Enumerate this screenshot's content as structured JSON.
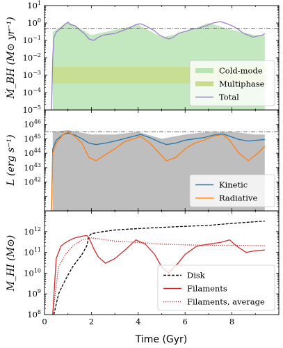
{
  "chart_data": [
    {
      "type": "line",
      "panel": "top",
      "ylabel": "Ṁ_BH (M⊙ yr⁻¹)",
      "yscale": "log",
      "ylim": [
        1e-05,
        10
      ],
      "xlim": [
        0,
        10
      ],
      "y_ticks": [
        {
          "value": 10,
          "base": "10",
          "exp": "1"
        },
        {
          "value": 1,
          "base": "10",
          "exp": "0"
        },
        {
          "value": 0.1,
          "base": "10",
          "exp": "-1"
        },
        {
          "value": 0.01,
          "base": "10",
          "exp": "-2"
        },
        {
          "value": 0.001,
          "base": "10",
          "exp": "-3"
        },
        {
          "value": 0.0001,
          "base": "10",
          "exp": "-4"
        },
        {
          "value": 1e-05,
          "base": "10",
          "exp": "-5"
        }
      ],
      "reference_line": 0.5,
      "legend": {
        "placement": "lower right",
        "entries": [
          "Cold-mode",
          "Multiphase",
          "Total"
        ]
      },
      "series": [
        {
          "name": "Cold-mode",
          "color": "#b9e3b3",
          "style": "fill",
          "x": [
            0.35,
            1,
            2,
            3,
            4,
            5,
            6,
            7,
            8,
            9,
            9.4
          ],
          "y": [
            0.3,
            1.2,
            0.2,
            0.4,
            0.8,
            0.15,
            0.3,
            1.0,
            0.4,
            0.2,
            0.2
          ]
        },
        {
          "name": "Multiphase",
          "color": "#c8dc8c",
          "style": "band",
          "x": [
            0.35,
            2,
            4,
            6,
            8,
            9.4
          ],
          "y": [
            0.001,
            0.001,
            0.001,
            0.001,
            0.001,
            0.001
          ]
        },
        {
          "name": "Total",
          "color": "#9b7fc7",
          "style": "line",
          "x": [
            0.3,
            0.35,
            0.4,
            0.5,
            0.7,
            0.9,
            1.0,
            1.1,
            1.3,
            1.5,
            1.7,
            1.9,
            2.1,
            2.3,
            2.5,
            2.7,
            3.0,
            3.3,
            3.6,
            3.9,
            4.1,
            4.3,
            4.5,
            4.7,
            4.9,
            5.1,
            5.3,
            5.5,
            5.7,
            5.9,
            6.1,
            6.3,
            6.6,
            6.9,
            7.2,
            7.5,
            7.7,
            7.9,
            8.1,
            8.3,
            8.5,
            8.7,
            8.9,
            9.1,
            9.3,
            9.4
          ],
          "y": [
            1e-05,
            0.01,
            0.15,
            0.3,
            0.5,
            0.9,
            1.1,
            0.8,
            0.7,
            0.4,
            0.25,
            0.12,
            0.1,
            0.15,
            0.2,
            0.22,
            0.25,
            0.35,
            0.5,
            0.8,
            0.9,
            0.7,
            0.5,
            0.35,
            0.2,
            0.15,
            0.12,
            0.15,
            0.25,
            0.3,
            0.35,
            0.45,
            0.5,
            0.7,
            1.0,
            1.2,
            1.0,
            0.8,
            0.6,
            0.4,
            0.25,
            0.2,
            0.15,
            0.18,
            0.2,
            0.25
          ]
        }
      ]
    },
    {
      "type": "line",
      "panel": "middle",
      "ylabel": "L (erg s⁻¹)",
      "yscale": "log",
      "ylim": [
        10000000000000000000000000000000000000000,
        1e+47
      ],
      "xlim": [
        0,
        10
      ],
      "y_ticks": [
        {
          "value": 1e+46,
          "base": "10",
          "exp": "46"
        },
        {
          "value": 1e+45,
          "base": "10",
          "exp": "45"
        },
        {
          "value": 1e+44,
          "base": "10",
          "exp": "44"
        },
        {
          "value": 1e+43,
          "base": "10",
          "exp": "43"
        },
        {
          "value": 1e+42,
          "base": "10",
          "exp": "42"
        }
      ],
      "reference_line": 3e+45,
      "legend": {
        "placement": "lower right",
        "entries": [
          "Kinetic",
          "Radiative"
        ]
      },
      "series": [
        {
          "name": "Kinetic",
          "color": "#1f77b4",
          "style": "line",
          "x": [
            0.3,
            0.35,
            0.5,
            0.8,
            1.0,
            1.3,
            1.6,
            1.9,
            2.2,
            2.6,
            3.0,
            3.4,
            3.8,
            4.1,
            4.5,
            4.9,
            5.2,
            5.6,
            6.0,
            6.4,
            6.8,
            7.2,
            7.6,
            7.9,
            8.3,
            8.7,
            9.1,
            9.4
          ],
          "y": [
            1e+40,
            2e+44,
            8e+44,
            2e+45,
            2.5e+45,
            1.8e+45,
            1e+45,
            5e+44,
            4e+44,
            5e+44,
            7e+44,
            1e+45,
            1.5e+45,
            2e+45,
            1.2e+45,
            6e+44,
            4e+44,
            5e+44,
            8e+44,
            1e+45,
            1.2e+45,
            1.8e+45,
            2.2e+45,
            1.5e+45,
            9e+44,
            7e+44,
            8e+44,
            9e+44
          ]
        },
        {
          "name": "Radiative",
          "color": "#ff7f0e",
          "style": "line",
          "x": [
            0.3,
            0.35,
            0.5,
            0.8,
            1.0,
            1.3,
            1.6,
            1.9,
            2.2,
            2.6,
            3.0,
            3.4,
            3.8,
            4.1,
            4.5,
            4.9,
            5.2,
            5.6,
            6.0,
            6.4,
            6.8,
            7.2,
            7.6,
            7.9,
            8.3,
            8.7,
            9.1,
            9.4
          ],
          "y": [
            1e+40,
            1e+44,
            5e+44,
            2e+45,
            3e+45,
            1.5e+45,
            5e+44,
            5e+43,
            3e+43,
            8e+43,
            2e+44,
            6e+44,
            1e+45,
            1.5e+45,
            5e+44,
            1e+44,
            3e+43,
            5e+43,
            2e+44,
            5e+44,
            8e+44,
            1.5e+45,
            2e+45,
            8e+44,
            1e+44,
            3e+43,
            1e+44,
            3e+44
          ]
        },
        {
          "name": "",
          "color": "#b3b3b3",
          "style": "fill",
          "x": [
            0.35,
            1,
            2,
            3,
            4,
            5,
            6,
            7,
            8,
            9,
            9.4
          ],
          "y": [
            3e+45,
            4e+45,
            2e+45,
            2e+45,
            3e+45,
            1e+45,
            2e+45,
            3e+45,
            3e+45,
            2e+45,
            2e+45
          ]
        }
      ]
    },
    {
      "type": "line",
      "panel": "bottom",
      "ylabel": "M_HI (M⊙)",
      "xlabel": "Time (Gyr)",
      "yscale": "log",
      "ylim": [
        100000000,
        10000000000000
      ],
      "xlim": [
        0,
        10
      ],
      "x_ticks": [
        "0",
        "2",
        "4",
        "6",
        "8"
      ],
      "y_ticks": [
        {
          "value": 1000000000000,
          "base": "10",
          "exp": "12"
        },
        {
          "value": 100000000000,
          "base": "10",
          "exp": "11"
        },
        {
          "value": 10000000000,
          "base": "10",
          "exp": "10"
        },
        {
          "value": 1000000000,
          "base": "10",
          "exp": "9"
        },
        {
          "value": 100000000,
          "base": "10",
          "exp": "8"
        }
      ],
      "legend": {
        "placement": "lower right",
        "entries": [
          "Disk",
          "Filaments",
          "Filaments, average"
        ]
      },
      "series": [
        {
          "name": "Disk",
          "color": "#000000",
          "style": "dashed",
          "x": [
            0.4,
            0.6,
            0.8,
            1.0,
            1.2,
            1.4,
            1.6,
            1.8,
            1.9,
            2.0,
            2.5,
            3.0,
            4.0,
            5.0,
            6.0,
            7.0,
            8.0,
            9.0,
            9.4
          ],
          "y": [
            100000000,
            1000000000,
            3000000000,
            8000000000,
            20000000000,
            40000000000,
            80000000000,
            200000000000,
            600000000000,
            800000000000,
            1000000000000,
            1200000000000,
            1400000000000,
            1600000000000,
            1800000000000,
            2000000000000,
            2500000000000,
            3000000000000,
            3200000000000
          ]
        },
        {
          "name": "Filaments",
          "color": "#d62728",
          "style": "line",
          "x": [
            0.35,
            0.5,
            0.7,
            0.9,
            1.1,
            1.3,
            1.6,
            1.8,
            1.9,
            2.1,
            2.3,
            2.6,
            3.0,
            3.5,
            3.9,
            4.3,
            4.7,
            5.0,
            5.3,
            5.7,
            6.0,
            6.5,
            7.0,
            7.5,
            7.9,
            8.2,
            8.6,
            9.0,
            9.4
          ],
          "y": [
            100000000,
            50000000000,
            200000000000,
            300000000000,
            400000000000,
            500000000000,
            600000000000,
            650000000000,
            500000000000,
            150000000000,
            60000000000,
            30000000000,
            50000000000,
            150000000000,
            400000000000,
            250000000000,
            80000000000,
            20000000000,
            10000000000,
            30000000000,
            80000000000,
            200000000000,
            250000000000,
            300000000000,
            400000000000,
            200000000000,
            100000000000,
            120000000000,
            130000000000
          ]
        },
        {
          "name": "Filaments, average",
          "color": "#d62728",
          "style": "dotted",
          "x": [
            0.35,
            0.6,
            0.9,
            1.2,
            1.6,
            2.0,
            3.0,
            4.0,
            5.0,
            6.0,
            7.0,
            8.0,
            9.0,
            9.4
          ],
          "y": [
            100000000,
            20000000000,
            80000000000,
            200000000000,
            400000000000,
            500000000000,
            350000000000,
            300000000000,
            250000000000,
            230000000000,
            220000000000,
            220000000000,
            210000000000,
            210000000000
          ]
        }
      ]
    }
  ]
}
